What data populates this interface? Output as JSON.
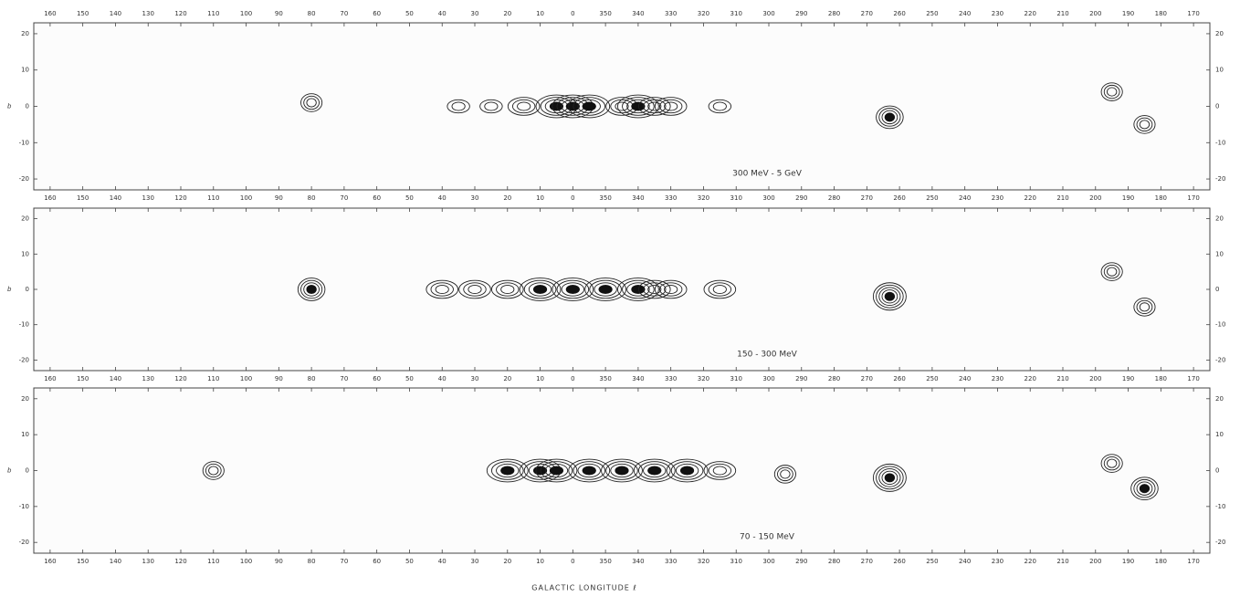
{
  "chart_data": [
    {
      "type": "contour",
      "annotation": "300 MeV - 5 GeV",
      "ylabel": "b",
      "xlim": [
        165,
        -195
      ],
      "ylim": [
        -23,
        23
      ],
      "xticks": [
        160,
        150,
        140,
        130,
        120,
        110,
        100,
        90,
        80,
        70,
        60,
        50,
        40,
        30,
        20,
        10,
        0,
        {
          "value": -10,
          "label": "350"
        },
        {
          "value": -20,
          "label": "340"
        },
        {
          "value": -30,
          "label": "330"
        },
        {
          "value": -40,
          "label": "320"
        },
        {
          "value": -50,
          "label": "310"
        },
        {
          "value": -60,
          "label": "300"
        },
        {
          "value": -70,
          "label": "290"
        },
        {
          "value": -80,
          "label": "280"
        },
        {
          "value": -90,
          "label": "270"
        },
        {
          "value": -100,
          "label": "260"
        },
        {
          "value": -110,
          "label": "250"
        },
        {
          "value": -120,
          "label": "240"
        },
        {
          "value": -130,
          "label": "230"
        },
        {
          "value": -140,
          "label": "220"
        },
        {
          "value": -150,
          "label": "210"
        },
        {
          "value": -160,
          "label": "200"
        },
        {
          "value": -170,
          "label": "190"
        },
        {
          "value": -180,
          "label": "180"
        },
        {
          "value": -190,
          "label": "170"
        }
      ],
      "yticks": [
        -20,
        -10,
        0,
        10,
        20
      ],
      "x": [
        80,
        35,
        25,
        15,
        5,
        0,
        -5,
        -15,
        -20,
        -25,
        -30,
        -45,
        -97,
        -165,
        -175
      ],
      "y": [
        1,
        0,
        0,
        0,
        0,
        0,
        0,
        0,
        0,
        0,
        0,
        0,
        -3,
        4,
        -5
      ],
      "values": [
        3,
        2,
        2,
        3,
        4,
        4,
        4,
        3,
        4,
        3,
        3,
        2,
        4,
        3,
        3
      ]
    },
    {
      "type": "contour",
      "annotation": "150 - 300 MeV",
      "ylabel": "b",
      "xlim": [
        165,
        -195
      ],
      "ylim": [
        -23,
        23
      ],
      "xticks": [
        160,
        150,
        140,
        130,
        120,
        110,
        100,
        90,
        80,
        70,
        60,
        50,
        40,
        30,
        20,
        10,
        0,
        {
          "value": -10,
          "label": "350"
        },
        {
          "value": -20,
          "label": "340"
        },
        {
          "value": -30,
          "label": "330"
        },
        {
          "value": -40,
          "label": "320"
        },
        {
          "value": -50,
          "label": "310"
        },
        {
          "value": -60,
          "label": "300"
        },
        {
          "value": -70,
          "label": "290"
        },
        {
          "value": -80,
          "label": "280"
        },
        {
          "value": -90,
          "label": "270"
        },
        {
          "value": -100,
          "label": "260"
        },
        {
          "value": -110,
          "label": "250"
        },
        {
          "value": -120,
          "label": "240"
        },
        {
          "value": -130,
          "label": "230"
        },
        {
          "value": -140,
          "label": "220"
        },
        {
          "value": -150,
          "label": "210"
        },
        {
          "value": -160,
          "label": "200"
        },
        {
          "value": -170,
          "label": "190"
        },
        {
          "value": -180,
          "label": "180"
        },
        {
          "value": -190,
          "label": "170"
        }
      ],
      "yticks": [
        -20,
        -10,
        0,
        10,
        20
      ],
      "x": [
        80,
        40,
        30,
        20,
        10,
        0,
        -10,
        -20,
        -25,
        -30,
        -45,
        -97,
        -165,
        -175
      ],
      "y": [
        0,
        0,
        0,
        0,
        0,
        0,
        0,
        0,
        0,
        0,
        0,
        -2,
        5,
        -5
      ],
      "values": [
        4,
        3,
        3,
        3,
        4,
        4,
        4,
        4,
        3,
        3,
        3,
        5,
        3,
        3
      ]
    },
    {
      "type": "contour",
      "annotation": "70 - 150 MeV",
      "ylabel": "b",
      "xlabel": "GALACTIC LONGITUDE ℓ",
      "xlim": [
        165,
        -195
      ],
      "ylim": [
        -23,
        23
      ],
      "xticks": [
        160,
        150,
        140,
        130,
        120,
        110,
        100,
        90,
        80,
        70,
        60,
        50,
        40,
        30,
        20,
        10,
        0,
        {
          "value": -10,
          "label": "350"
        },
        {
          "value": -20,
          "label": "340"
        },
        {
          "value": -30,
          "label": "330"
        },
        {
          "value": -40,
          "label": "320"
        },
        {
          "value": -50,
          "label": "310"
        },
        {
          "value": -60,
          "label": "300"
        },
        {
          "value": -70,
          "label": "290"
        },
        {
          "value": -80,
          "label": "280"
        },
        {
          "value": -90,
          "label": "270"
        },
        {
          "value": -100,
          "label": "260"
        },
        {
          "value": -110,
          "label": "250"
        },
        {
          "value": -120,
          "label": "240"
        },
        {
          "value": -130,
          "label": "230"
        },
        {
          "value": -140,
          "label": "220"
        },
        {
          "value": -150,
          "label": "210"
        },
        {
          "value": -160,
          "label": "200"
        },
        {
          "value": -170,
          "label": "190"
        },
        {
          "value": -180,
          "label": "180"
        },
        {
          "value": -190,
          "label": "170"
        }
      ],
      "yticks": [
        -20,
        -10,
        0,
        10,
        20
      ],
      "x": [
        110,
        20,
        10,
        5,
        -5,
        -15,
        -25,
        -35,
        -45,
        -65,
        -97,
        -165,
        -175
      ],
      "y": [
        0,
        0,
        0,
        0,
        0,
        0,
        0,
        0,
        0,
        -1,
        -2,
        2,
        -5
      ],
      "values": [
        3,
        4,
        4,
        4,
        4,
        4,
        4,
        4,
        3,
        3,
        5,
        3,
        4
      ]
    }
  ]
}
